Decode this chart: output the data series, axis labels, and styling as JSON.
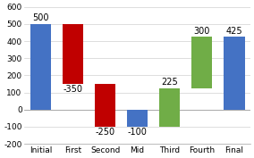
{
  "categories": [
    "Initial",
    "First",
    "Second",
    "Mid",
    "Third",
    "Fourth",
    "Final"
  ],
  "labels": [
    "500",
    "-350",
    "-250",
    "-100",
    "225",
    "300",
    "425"
  ],
  "bar_bottoms": [
    0,
    150,
    -100,
    -100,
    -100,
    125,
    0
  ],
  "bar_heights": [
    500,
    350,
    250,
    100,
    225,
    300,
    425
  ],
  "bar_tops": [
    500,
    500,
    150,
    0,
    125,
    425,
    425
  ],
  "bar_dirs": [
    1,
    -1,
    -1,
    -1,
    1,
    1,
    1
  ],
  "bar_colors": [
    "#4472c4",
    "#c00000",
    "#c00000",
    "#4472c4",
    "#70ad47",
    "#70ad47",
    "#4472c4"
  ],
  "ylim": [
    -200,
    600
  ],
  "yticks": [
    -200,
    -100,
    0,
    100,
    200,
    300,
    400,
    500,
    600
  ],
  "grid_color": "#d0d0d0",
  "bg_color": "#ffffff",
  "label_fontsize": 7,
  "tick_fontsize": 6.5
}
